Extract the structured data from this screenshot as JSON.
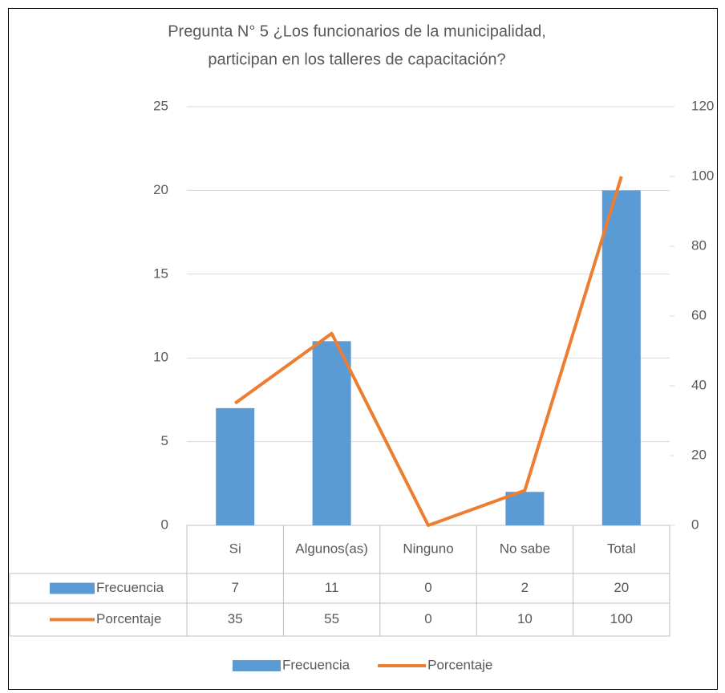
{
  "chart_data": {
    "type": "bar-line",
    "title": [
      "Pregunta N° 5 ¿Los funcionarios de la municipalidad,",
      "participan en los talleres de capacitación?"
    ],
    "categories": [
      "Si",
      "Algunos(as)",
      "Ninguno",
      "No sabe",
      "Total"
    ],
    "series": [
      {
        "name": "Frecuencia",
        "type": "bar",
        "color": "#5b9bd5",
        "values": [
          7,
          11,
          0,
          2,
          20
        ]
      },
      {
        "name": "Porcentaje",
        "type": "line",
        "color": "#ed7d31",
        "axis": "y2",
        "values": [
          35,
          55,
          0,
          10,
          100
        ]
      }
    ],
    "ylim": [
      0,
      25
    ],
    "yticks": [
      0,
      5,
      10,
      15,
      20,
      25
    ],
    "y2lim": [
      0,
      120
    ],
    "y2ticks": [
      0,
      20,
      40,
      60,
      80,
      100,
      120
    ],
    "grid": true,
    "legend": "bottom"
  }
}
